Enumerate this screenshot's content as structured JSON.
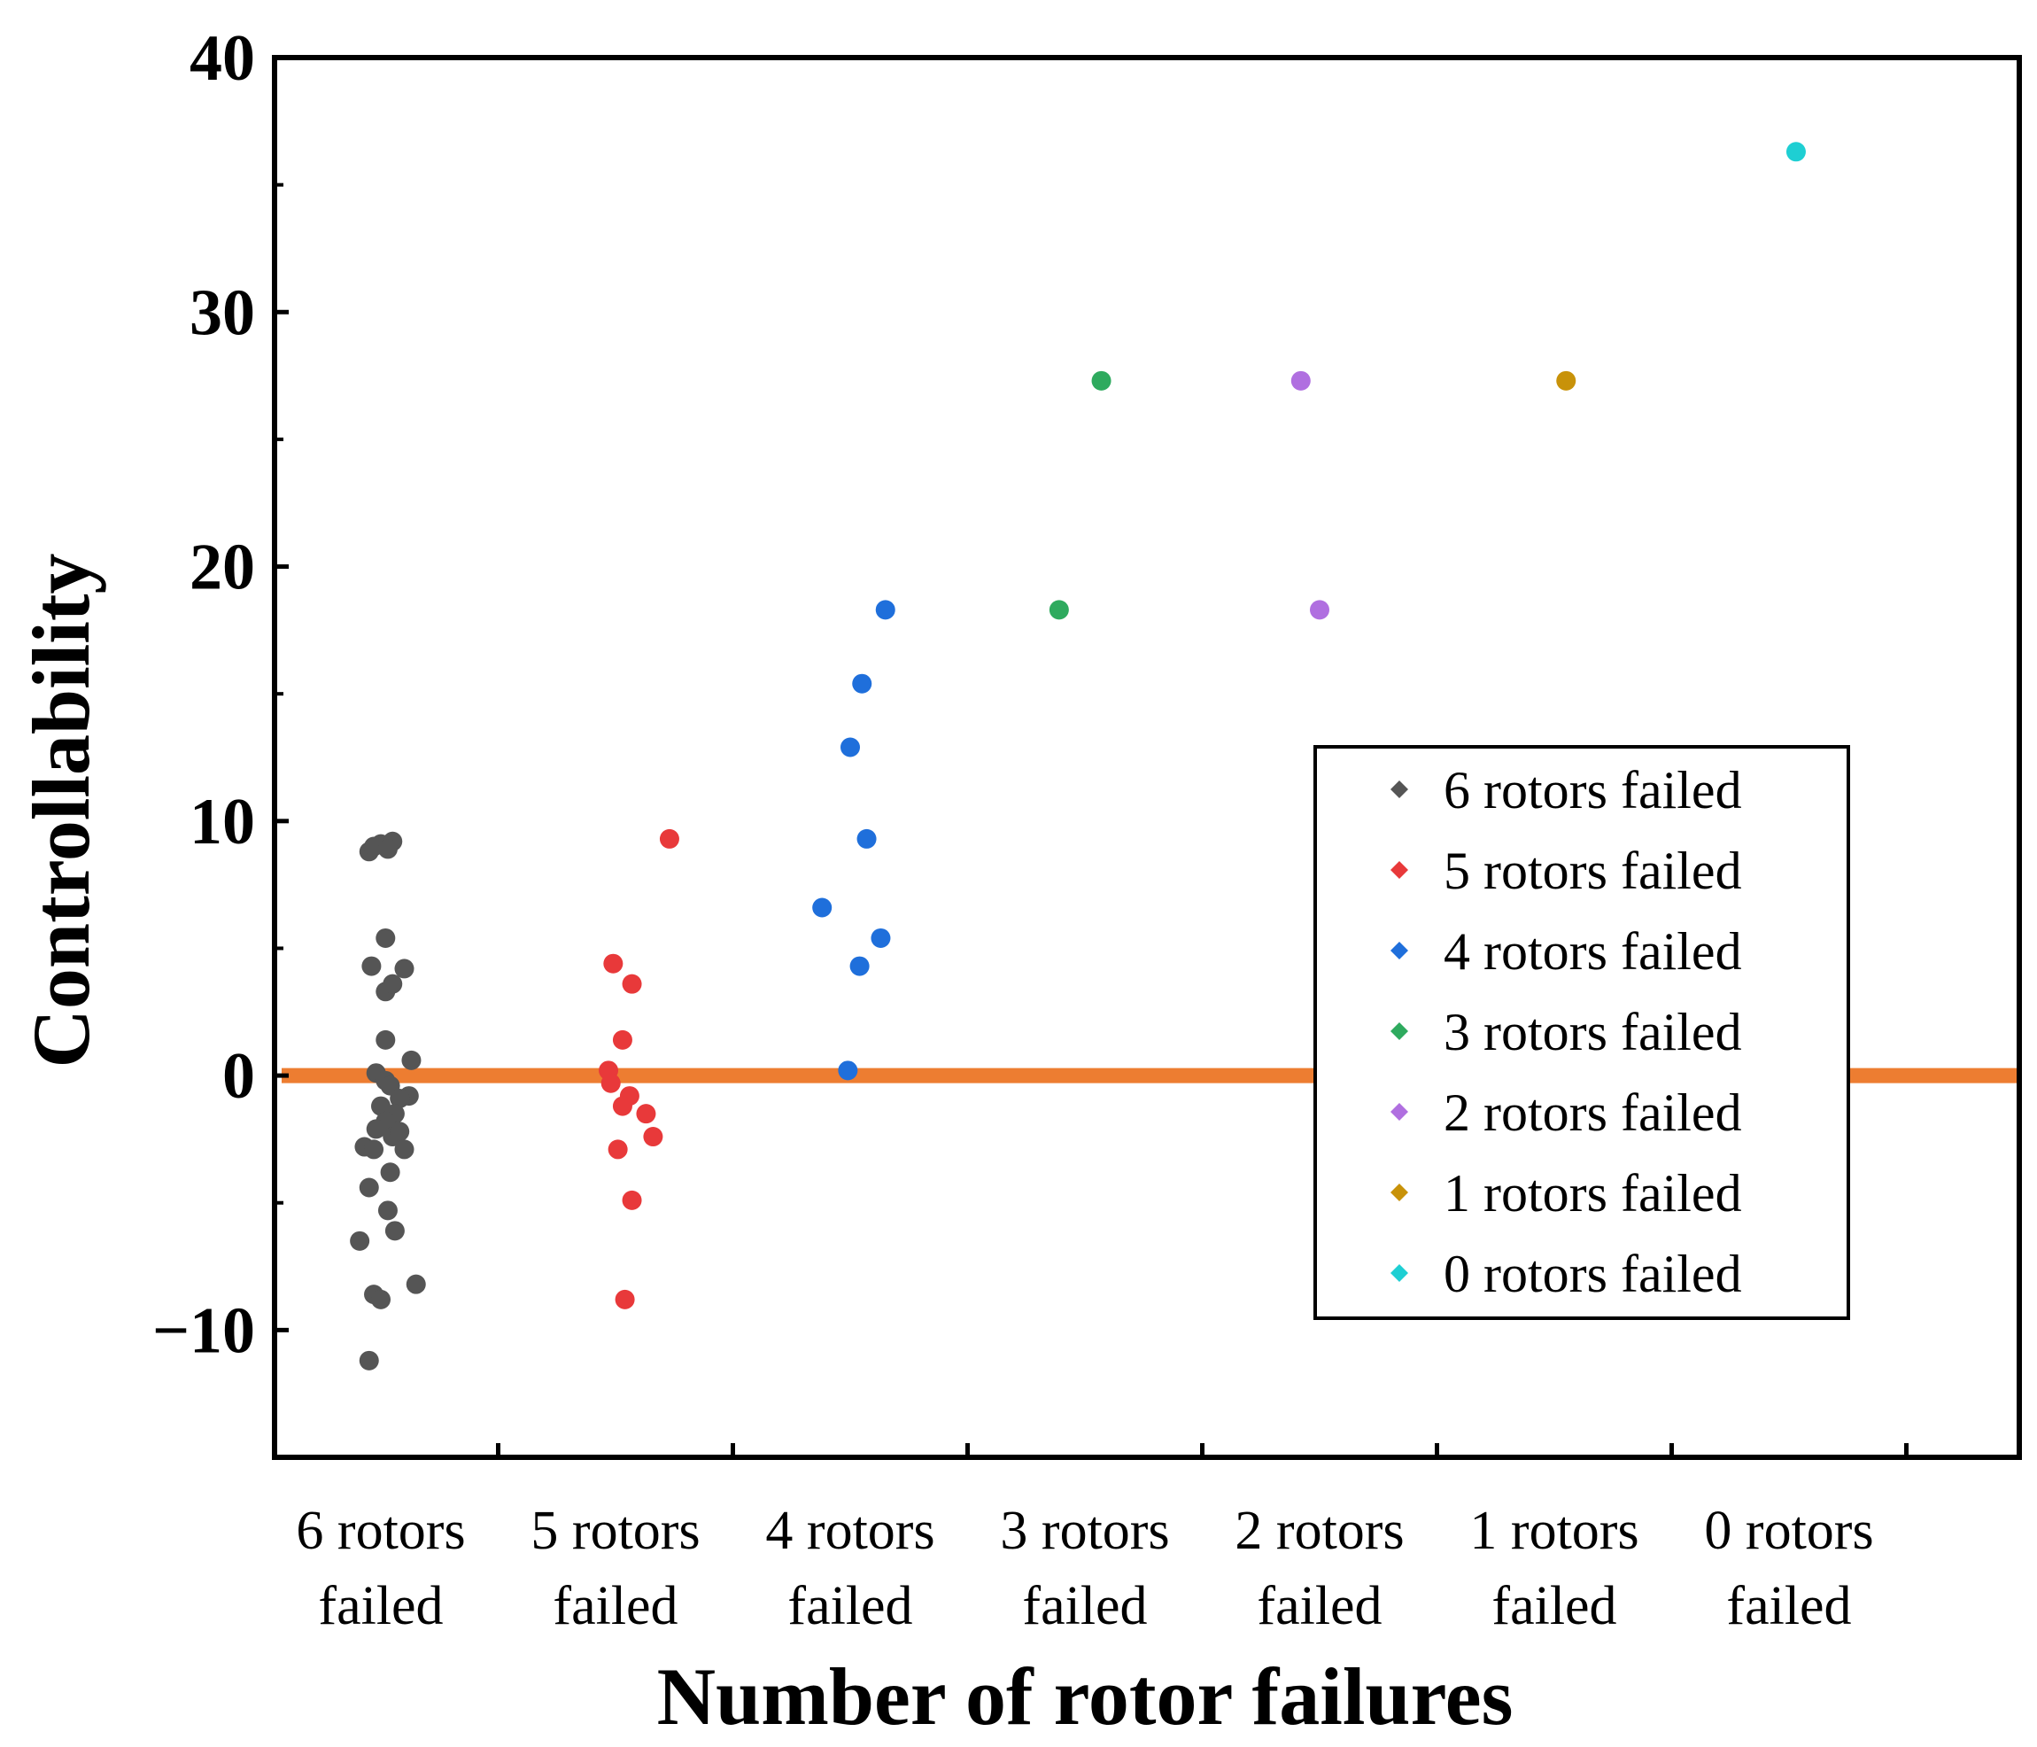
{
  "chart_data": {
    "type": "scatter",
    "title": "",
    "xlabel": "Number of rotor failures",
    "ylabel": "Controllability",
    "ylim": [
      -15,
      40
    ],
    "yticks": [
      "−10",
      "0",
      "10",
      "20",
      "30",
      "40"
    ],
    "ytick_values": [
      -10,
      0,
      10,
      20,
      30,
      40
    ],
    "categories": [
      {
        "line1": "6 rotors",
        "line2": "failed"
      },
      {
        "line1": "5 rotors",
        "line2": "failed"
      },
      {
        "line1": "4 rotors",
        "line2": "failed"
      },
      {
        "line1": "3 rotors",
        "line2": "failed"
      },
      {
        "line1": "2 rotors",
        "line2": "failed"
      },
      {
        "line1": "1 rotors",
        "line2": "failed"
      },
      {
        "line1": "0 rotors",
        "line2": "failed"
      }
    ],
    "reference_line": {
      "y": 0,
      "color": "#ED7D31"
    },
    "legend_position": "right",
    "series": [
      {
        "name": "6 rotors failed",
        "color": "#555555",
        "category_index": 0,
        "points": [
          [
            -0.05,
            8.8
          ],
          [
            0.0,
            9.1
          ],
          [
            0.05,
            9.2
          ],
          [
            -0.03,
            9.0
          ],
          [
            0.03,
            8.9
          ],
          [
            0.02,
            5.4
          ],
          [
            -0.04,
            4.3
          ],
          [
            0.1,
            4.2
          ],
          [
            0.02,
            3.3
          ],
          [
            0.05,
            3.6
          ],
          [
            0.02,
            1.4
          ],
          [
            0.13,
            0.6
          ],
          [
            -0.02,
            0.1
          ],
          [
            0.02,
            -0.2
          ],
          [
            0.04,
            -0.4
          ],
          [
            0.12,
            -0.8
          ],
          [
            0.08,
            -0.9
          ],
          [
            0.0,
            -1.2
          ],
          [
            0.06,
            -1.5
          ],
          [
            0.02,
            -1.8
          ],
          [
            -0.02,
            -2.1
          ],
          [
            0.05,
            -2.4
          ],
          [
            0.08,
            -2.2
          ],
          [
            -0.07,
            -2.8
          ],
          [
            -0.03,
            -2.9
          ],
          [
            0.1,
            -2.9
          ],
          [
            0.04,
            -3.8
          ],
          [
            -0.05,
            -4.4
          ],
          [
            0.03,
            -5.3
          ],
          [
            0.06,
            -6.1
          ],
          [
            -0.09,
            -6.5
          ],
          [
            -0.03,
            -8.6
          ],
          [
            0.0,
            -8.8
          ],
          [
            0.15,
            -8.2
          ],
          [
            -0.05,
            -11.2
          ]
        ]
      },
      {
        "name": "5 rotors failed",
        "color": "#E8393A",
        "category_index": 1,
        "points": [
          [
            0.23,
            9.3
          ],
          [
            -0.01,
            4.4
          ],
          [
            0.07,
            3.6
          ],
          [
            0.03,
            1.4
          ],
          [
            -0.03,
            0.2
          ],
          [
            -0.02,
            -0.3
          ],
          [
            0.06,
            -0.8
          ],
          [
            0.03,
            -1.2
          ],
          [
            0.13,
            -1.5
          ],
          [
            0.16,
            -2.4
          ],
          [
            0.01,
            -2.9
          ],
          [
            0.07,
            -4.9
          ],
          [
            0.04,
            -8.8
          ]
        ]
      },
      {
        "name": "4 rotors failed",
        "color": "#1F6FDB",
        "category_index": 2,
        "points": [
          [
            0.15,
            18.3
          ],
          [
            0.05,
            15.4
          ],
          [
            0.0,
            12.9
          ],
          [
            0.07,
            9.3
          ],
          [
            -0.12,
            6.6
          ],
          [
            0.13,
            5.4
          ],
          [
            0.04,
            4.3
          ],
          [
            -0.01,
            0.2
          ]
        ]
      },
      {
        "name": "3 rotors failed",
        "color": "#2EAA5E",
        "category_index": 3,
        "points": [
          [
            0.07,
            27.3
          ],
          [
            -0.11,
            18.3
          ]
        ]
      },
      {
        "name": "2 rotors failed",
        "color": "#B06FE0",
        "category_index": 4,
        "points": [
          [
            -0.08,
            27.3
          ],
          [
            0.0,
            18.3
          ]
        ]
      },
      {
        "name": "1 rotors failed",
        "color": "#C89209",
        "category_index": 5,
        "points": [
          [
            0.05,
            27.3
          ]
        ]
      },
      {
        "name": "0 rotors failed",
        "color": "#1ECFD3",
        "category_index": 6,
        "points": [
          [
            0.03,
            36.3
          ]
        ]
      }
    ]
  }
}
